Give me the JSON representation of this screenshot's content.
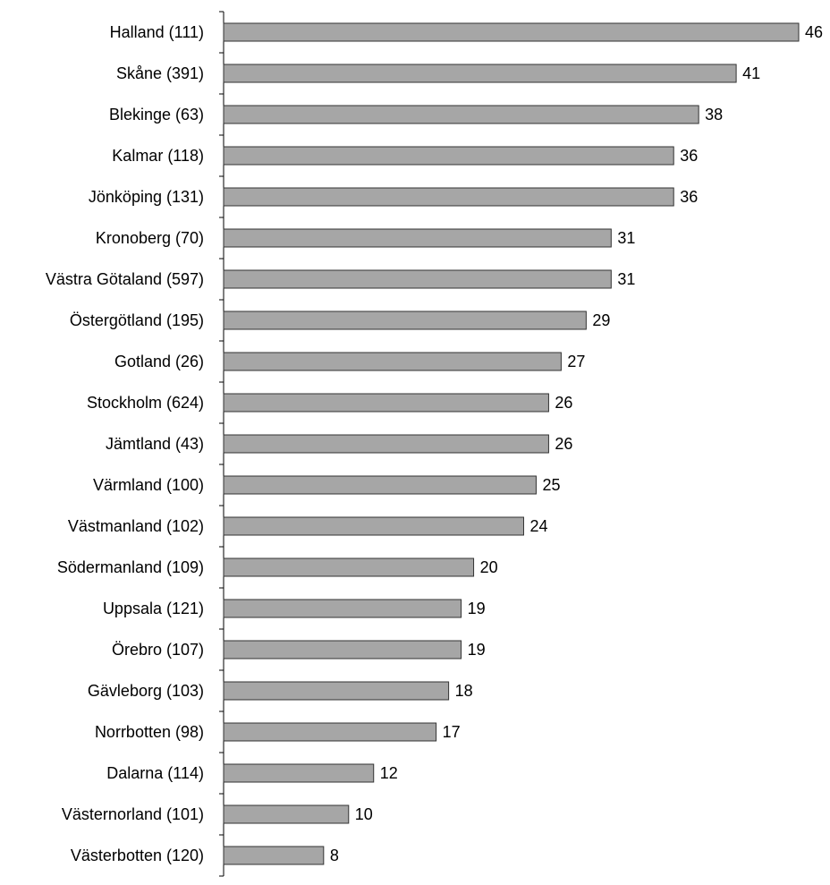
{
  "chart_data": {
    "type": "bar",
    "orientation": "horizontal",
    "title": "",
    "xlabel": "",
    "ylabel": "",
    "categories": [
      "Halland (111)",
      "Skåne (391)",
      "Blekinge (63)",
      "Kalmar (118)",
      "Jönköping (131)",
      "Kronoberg (70)",
      "Västra Götaland (597)",
      "Östergötland (195)",
      "Gotland (26)",
      "Stockholm (624)",
      "Jämtland (43)",
      "Värmland (100)",
      "Västmanland (102)",
      "Södermanland (109)",
      "Uppsala (121)",
      "Örebro (107)",
      "Gävleborg (103)",
      "Norrbotten (98)",
      "Dalarna (114)",
      "Västernorland (101)",
      "Västerbotten (120)"
    ],
    "values": [
      46,
      41,
      38,
      36,
      36,
      31,
      31,
      29,
      27,
      26,
      26,
      25,
      24,
      20,
      19,
      19,
      18,
      17,
      12,
      10,
      8
    ],
    "xlim": [
      0,
      46
    ],
    "grid": false,
    "legend": "none",
    "bar_color": "#a6a6a6",
    "bar_edge_color": "#333333"
  }
}
